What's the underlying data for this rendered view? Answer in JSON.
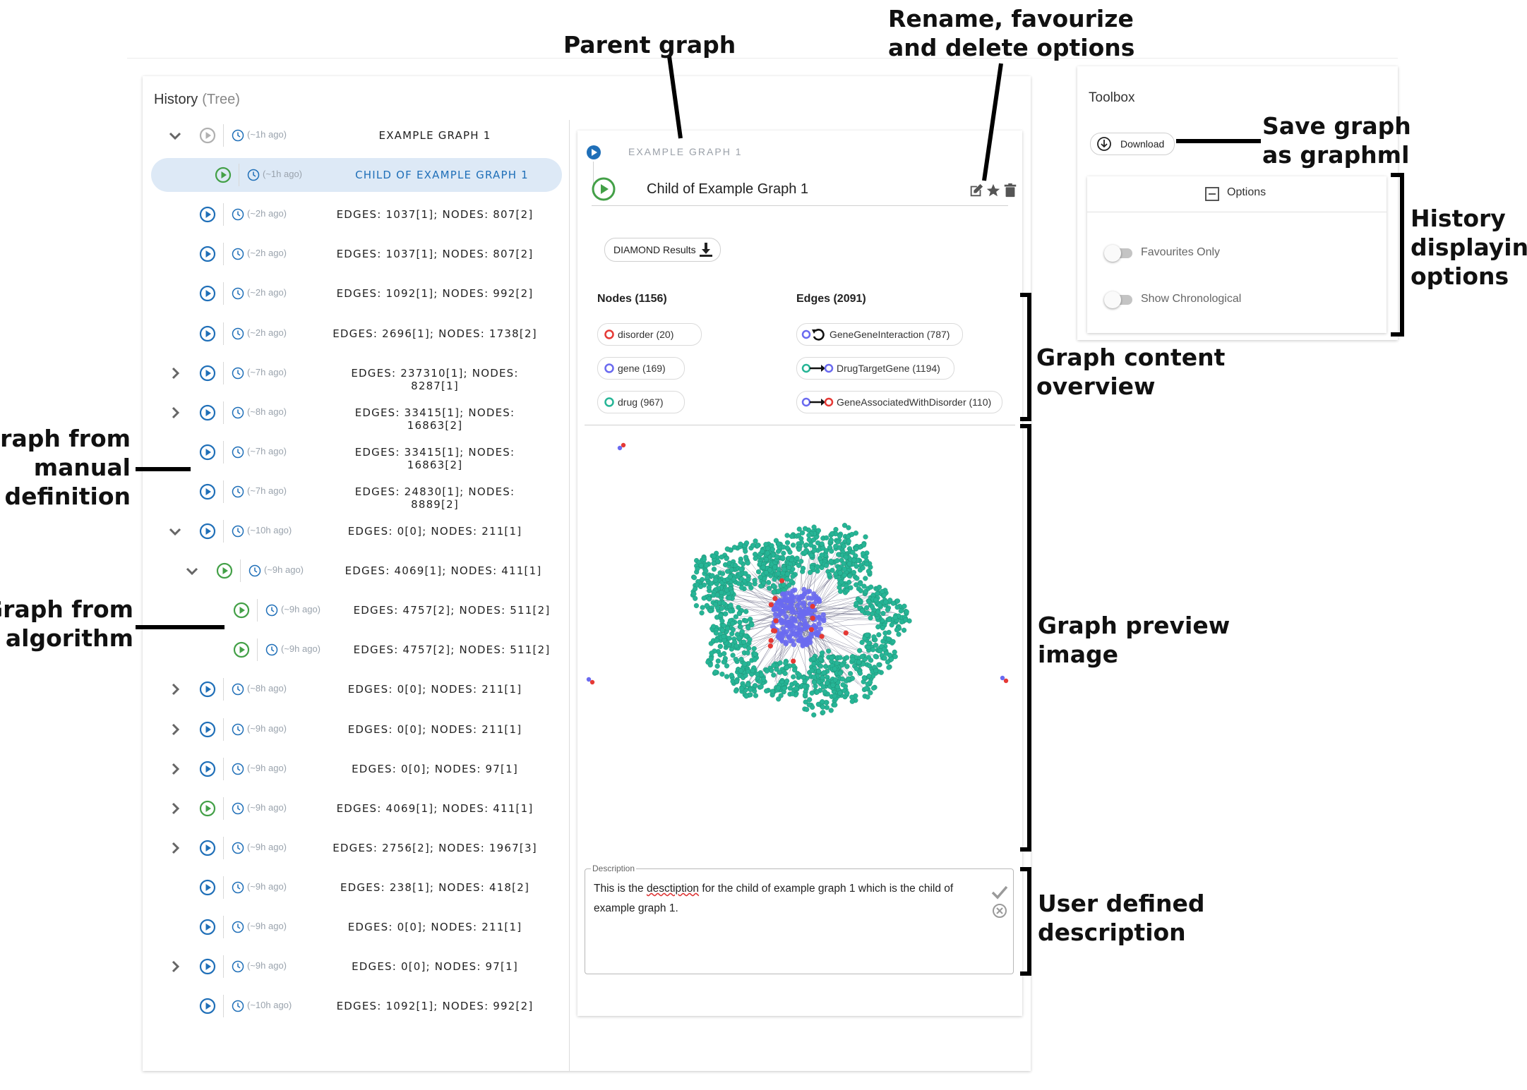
{
  "history": {
    "title": "History",
    "subtitle": "(Tree)",
    "rows": [
      {
        "chevron": "down",
        "status": "grey",
        "ago": "(~1h ago)",
        "label": "EXAMPLE GRAPH 1",
        "indent": 0
      },
      {
        "chevron": "none",
        "status": "green",
        "ago": "(~1h ago)",
        "label": "CHILD OF EXAMPLE GRAPH 1",
        "indent": 1,
        "selected": true
      },
      {
        "chevron": "none",
        "status": "blue",
        "ago": "(~2h ago)",
        "label": "EDGES: 1037[1]; NODES: 807[2]",
        "indent": 0
      },
      {
        "chevron": "none",
        "status": "blue",
        "ago": "(~2h ago)",
        "label": "EDGES: 1037[1]; NODES: 807[2]",
        "indent": 0
      },
      {
        "chevron": "none",
        "status": "blue",
        "ago": "(~2h ago)",
        "label": "EDGES: 1092[1]; NODES: 992[2]",
        "indent": 0
      },
      {
        "chevron": "none",
        "status": "blue",
        "ago": "(~2h ago)",
        "label": "EDGES: 2696[1]; NODES: 1738[2]",
        "indent": 0
      },
      {
        "chevron": "right",
        "status": "blue",
        "ago": "(~7h ago)",
        "label": "EDGES: 237310[1]; NODES: 8287[1]",
        "indent": 0
      },
      {
        "chevron": "right",
        "status": "blue",
        "ago": "(~8h ago)",
        "label": "EDGES: 33415[1]; NODES: 16863[2]",
        "indent": 0
      },
      {
        "chevron": "none",
        "status": "blue",
        "ago": "(~7h ago)",
        "label": "EDGES: 33415[1]; NODES: 16863[2]",
        "indent": 0
      },
      {
        "chevron": "none",
        "status": "blue",
        "ago": "(~7h ago)",
        "label": "EDGES: 24830[1]; NODES: 8889[2]",
        "indent": 0
      },
      {
        "chevron": "down",
        "status": "blue",
        "ago": "(~10h ago)",
        "label": "EDGES: 0[0]; NODES: 211[1]",
        "indent": 0
      },
      {
        "chevron": "down",
        "status": "green",
        "ago": "(~9h ago)",
        "label": "EDGES: 4069[1]; NODES: 411[1]",
        "indent": 1
      },
      {
        "chevron": "none",
        "status": "green",
        "ago": "(~9h ago)",
        "label": "EDGES: 4757[2]; NODES: 511[2]",
        "indent": 2
      },
      {
        "chevron": "none",
        "status": "green",
        "ago": "(~9h ago)",
        "label": "EDGES: 4757[2]; NODES: 511[2]",
        "indent": 2
      },
      {
        "chevron": "right",
        "status": "blue",
        "ago": "(~8h ago)",
        "label": "EDGES: 0[0]; NODES: 211[1]",
        "indent": 0
      },
      {
        "chevron": "right",
        "status": "blue",
        "ago": "(~9h ago)",
        "label": "EDGES: 0[0]; NODES: 211[1]",
        "indent": 0
      },
      {
        "chevron": "right",
        "status": "blue",
        "ago": "(~9h ago)",
        "label": "EDGES: 0[0]; NODES: 97[1]",
        "indent": 0
      },
      {
        "chevron": "right",
        "status": "green",
        "ago": "(~9h ago)",
        "label": "EDGES: 4069[1]; NODES: 411[1]",
        "indent": 0
      },
      {
        "chevron": "right",
        "status": "blue",
        "ago": "(~9h ago)",
        "label": "EDGES: 2756[2]; NODES: 1967[3]",
        "indent": 0
      },
      {
        "chevron": "none",
        "status": "blue",
        "ago": "(~9h ago)",
        "label": "EDGES: 238[1]; NODES: 418[2]",
        "indent": 0
      },
      {
        "chevron": "none",
        "status": "blue",
        "ago": "(~9h ago)",
        "label": "EDGES: 0[0]; NODES: 211[1]",
        "indent": 0
      },
      {
        "chevron": "right",
        "status": "blue",
        "ago": "(~9h ago)",
        "label": "EDGES: 0[0]; NODES: 97[1]",
        "indent": 0
      },
      {
        "chevron": "none",
        "status": "blue",
        "ago": "(~10h ago)",
        "label": "EDGES: 1092[1]; NODES: 992[2]",
        "indent": 0
      }
    ]
  },
  "detail": {
    "parent_label": "EXAMPLE GRAPH 1",
    "title": "Child of Example Graph 1",
    "actions": [
      "edit-icon",
      "star-icon",
      "delete-icon"
    ],
    "diamond_button": "DIAMOND Results",
    "nodes_header": "Nodes (1156)",
    "edges_header": "Edges (2091)",
    "node_types": [
      {
        "label": "disorder (20)",
        "color": "#e53935"
      },
      {
        "label": "gene (169)",
        "color": "#6a6af0"
      },
      {
        "label": "drug (967)",
        "color": "#26b596"
      }
    ],
    "edge_types": [
      {
        "label": "GeneGeneInteraction (787)",
        "from": "#6a6af0",
        "to": "self"
      },
      {
        "label": "DrugTargetGene (1194)",
        "from": "#26b596",
        "to": "#6a6af0"
      },
      {
        "label": "GeneAssociatedWithDisorder (110)",
        "from": "#6a6af0",
        "to": "#e53935"
      }
    ],
    "description_label": "Description",
    "description_pre": "This is the ",
    "description_misspelled": "desctiption",
    "description_post": " for the child of example graph 1 which is the child of example graph 1."
  },
  "toolbox": {
    "title": "Toolbox",
    "download_label": "Download",
    "options_label": "Options",
    "toggles": [
      {
        "label": "Favourites Only",
        "on": false
      },
      {
        "label": "Show Chronological",
        "on": false
      }
    ]
  },
  "annotations": {
    "parent_graph": "Parent graph",
    "rename_l1": "Rename, favourize",
    "rename_l2": "and delete options",
    "save_l1": "Save graph",
    "save_l2": "as graphml",
    "history_l1": "History",
    "history_l2": "displaying",
    "history_l3": "options",
    "content_l1": "Graph content",
    "content_l2": "overview",
    "preview_l1": "Graph preview",
    "preview_l2": "image",
    "desc_l1": "User defined",
    "desc_l2": "description",
    "manual_l1": "Graph from",
    "manual_l2": "manual",
    "manual_l3": "definition",
    "algo_l1": "Graph from",
    "algo_l2": "algorithm"
  },
  "colors": {
    "blue": "#1f6fb8",
    "green": "#43a047",
    "grey": "#b0b0b0",
    "drug": "#26b596",
    "gene": "#6a6af0",
    "disorder": "#e53935"
  }
}
